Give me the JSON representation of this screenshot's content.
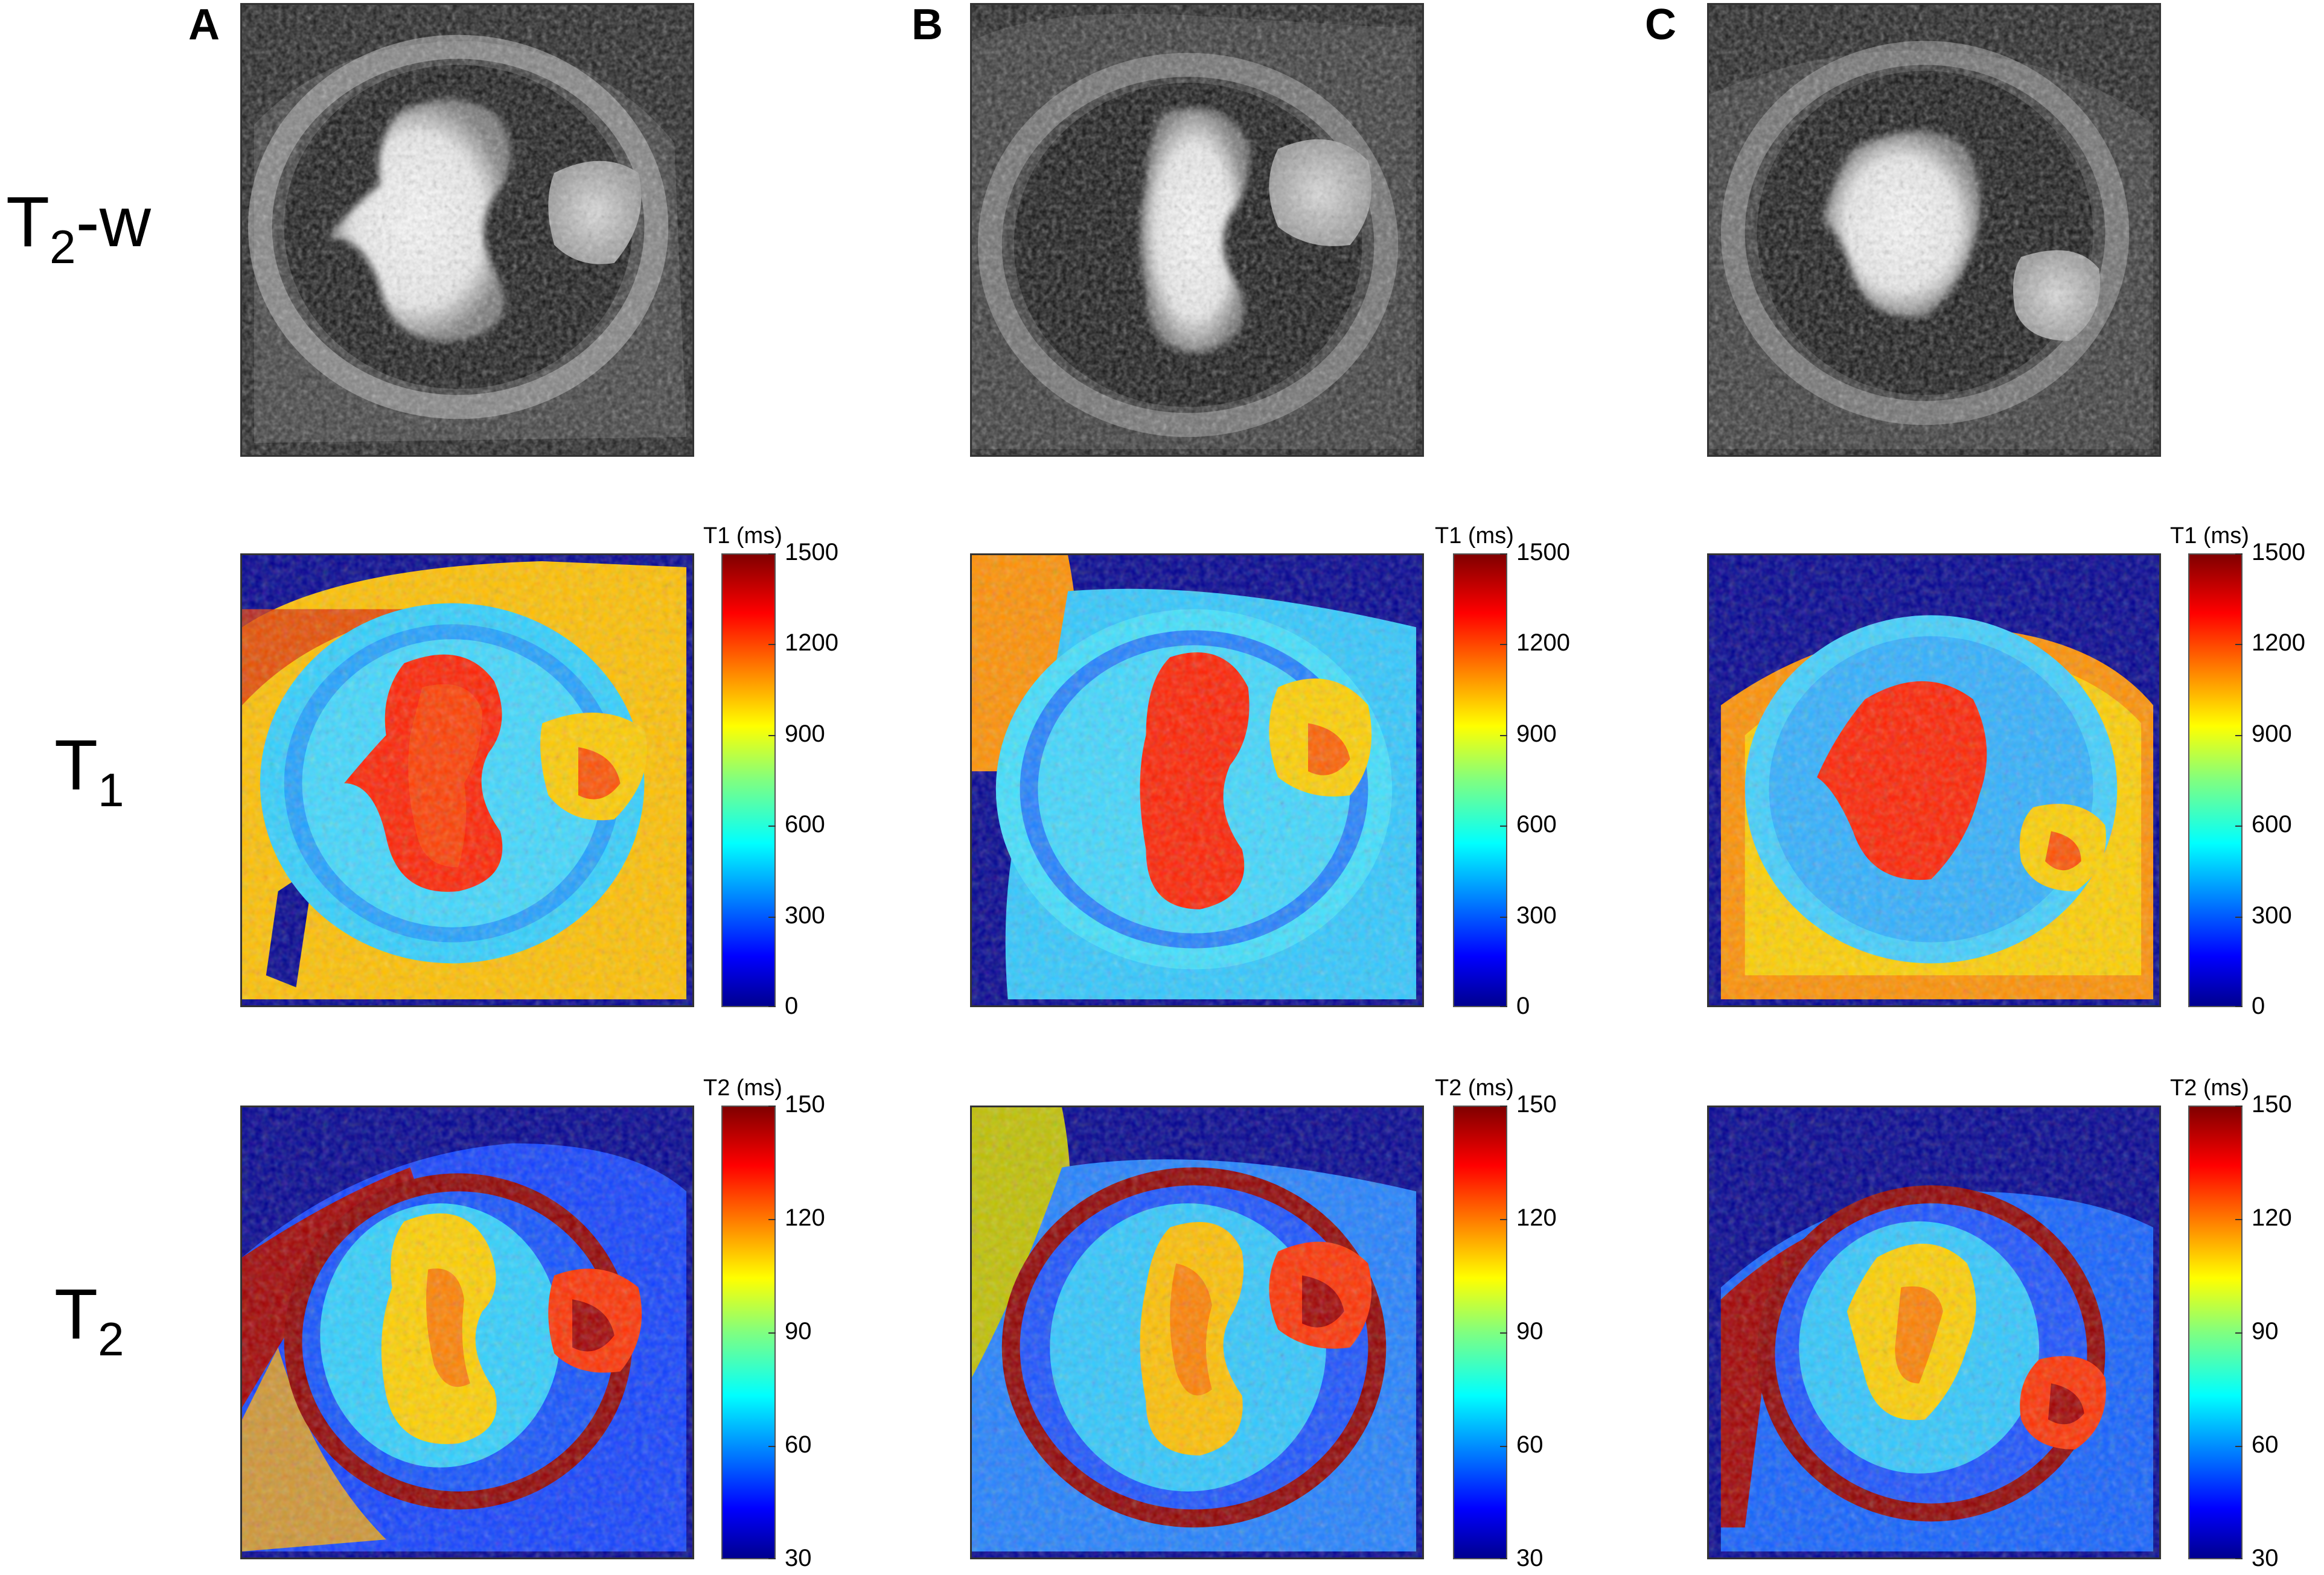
{
  "columns": [
    {
      "letter": "A"
    },
    {
      "letter": "B"
    },
    {
      "letter": "C"
    }
  ],
  "rows": [
    {
      "label_main": "T",
      "label_sub": "2",
      "label_suffix": "-w",
      "kind": "grayscale"
    },
    {
      "label_main": "T",
      "label_sub": "1",
      "label_suffix": "",
      "kind": "t1"
    },
    {
      "label_main": "T",
      "label_sub": "2",
      "label_suffix": "",
      "kind": "t2"
    }
  ],
  "colorbars": {
    "t1": {
      "title": "T1 (ms)",
      "ticks": [
        "1500",
        "1200",
        "900",
        "600",
        "300",
        "0"
      ],
      "min": 0,
      "max": 1500
    },
    "t2": {
      "title": "T2 (ms)",
      "ticks": [
        "150",
        "120",
        "90",
        "60",
        "30"
      ],
      "min": 30,
      "max": 150
    }
  },
  "colormap": "jet"
}
